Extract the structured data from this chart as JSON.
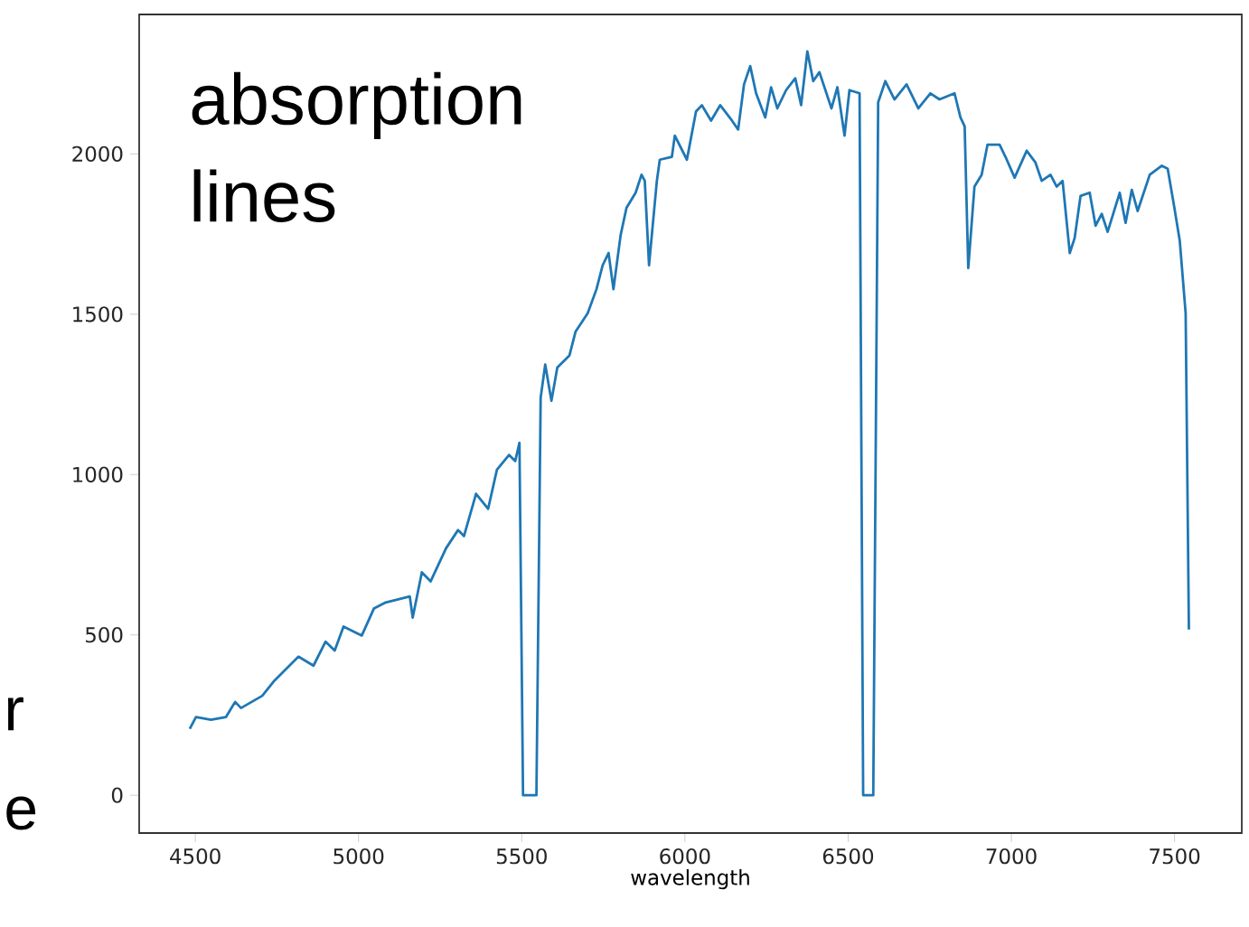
{
  "chart_data": {
    "type": "line",
    "xlabel": "wavelength",
    "color": "#1f77b4",
    "xlim": [
      4328,
      7706
    ],
    "ylim": [
      -118,
      2435
    ],
    "xticks": [
      4500,
      5000,
      5500,
      6000,
      6500,
      7000,
      7500
    ],
    "yticks": [
      0,
      500,
      1000,
      1500,
      2000
    ],
    "annotations": [
      "absorption lines",
      "r",
      "e"
    ],
    "x": [
      4483,
      4502,
      4548,
      4594,
      4622,
      4640,
      4705,
      4742,
      4816,
      4862,
      4899,
      4927,
      4954,
      5010,
      5047,
      5083,
      5157,
      5166,
      5194,
      5221,
      5268,
      5305,
      5323,
      5360,
      5397,
      5424,
      5461,
      5480,
      5493,
      5504,
      5545,
      5558,
      5572,
      5591,
      5609,
      5646,
      5665,
      5702,
      5729,
      5748,
      5766,
      5781,
      5803,
      5821,
      5849,
      5867,
      5877,
      5890,
      5914,
      5923,
      5960,
      5969,
      6006,
      6034,
      6052,
      6080,
      6108,
      6144,
      6163,
      6181,
      6200,
      6218,
      6246,
      6264,
      6283,
      6310,
      6338,
      6356,
      6375,
      6393,
      6412,
      6449,
      6467,
      6489,
      6504,
      6535,
      6546,
      6577,
      6592,
      6614,
      6642,
      6679,
      6715,
      6752,
      6780,
      6826,
      6844,
      6857,
      6868,
      6887,
      6909,
      6927,
      6964,
      6982,
      7010,
      7047,
      7074,
      7093,
      7120,
      7139,
      7157,
      7179,
      7194,
      7212,
      7240,
      7258,
      7277,
      7295,
      7332,
      7350,
      7369,
      7387,
      7424,
      7461,
      7479,
      7498,
      7516,
      7534,
      7544
    ],
    "values": [
      207,
      244,
      235,
      244,
      291,
      272,
      310,
      357,
      432,
      404,
      479,
      451,
      526,
      498,
      582,
      601,
      620,
      554,
      695,
      667,
      770,
      827,
      808,
      940,
      893,
      1015,
      1061,
      1042,
      1099,
      0,
      0,
      1240,
      1343,
      1230,
      1334,
      1371,
      1446,
      1503,
      1578,
      1653,
      1691,
      1578,
      1747,
      1832,
      1879,
      1935,
      1916,
      1653,
      1916,
      1982,
      1991,
      2057,
      1982,
      2133,
      2152,
      2104,
      2152,
      2104,
      2076,
      2217,
      2274,
      2189,
      2114,
      2208,
      2142,
      2199,
      2236,
      2152,
      2320,
      2227,
      2255,
      2142,
      2208,
      2057,
      2199,
      2189,
      0,
      0,
      2161,
      2227,
      2170,
      2217,
      2142,
      2189,
      2170,
      2189,
      2114,
      2086,
      1644,
      1898,
      1935,
      2029,
      2029,
      1991,
      1926,
      2010,
      1973,
      1916,
      1935,
      1898,
      1916,
      1691,
      1738,
      1869,
      1879,
      1776,
      1813,
      1757,
      1879,
      1785,
      1888,
      1822,
      1935,
      1963,
      1954,
      1841,
      1729,
      1503,
      517
    ]
  }
}
